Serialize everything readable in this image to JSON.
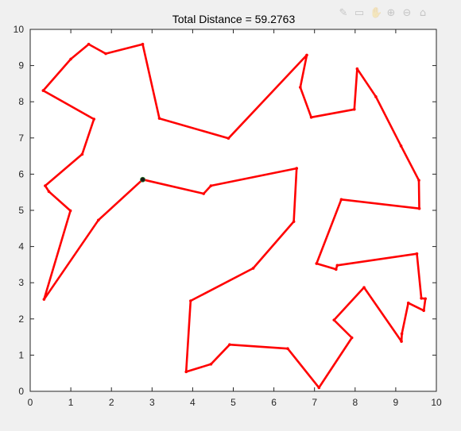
{
  "toolbar": {
    "icons": [
      "brush-icon",
      "data-tip-icon",
      "pan-icon",
      "zoom-in-icon",
      "zoom-out-icon",
      "home-icon"
    ]
  },
  "chart_data": {
    "type": "line",
    "title": "Total Distance = 59.2763",
    "xlabel": "",
    "ylabel": "",
    "xlim": [
      0,
      10
    ],
    "ylim": [
      0,
      10
    ],
    "xticks": [
      "0",
      "1",
      "2",
      "3",
      "4",
      "5",
      "6",
      "7",
      "8",
      "9",
      "10"
    ],
    "yticks": [
      "0",
      "1",
      "2",
      "3",
      "4",
      "5",
      "6",
      "7",
      "8",
      "9",
      "10"
    ],
    "grid": false,
    "line_color": "#ff0000",
    "start_marker_color": "#1a1a1a",
    "start_point": [
      2.77,
      5.85
    ],
    "route": [
      [
        2.77,
        5.85
      ],
      [
        4.27,
        5.46
      ],
      [
        4.45,
        5.68
      ],
      [
        6.56,
        6.16
      ],
      [
        6.49,
        4.69
      ],
      [
        5.49,
        3.4
      ],
      [
        3.95,
        2.5
      ],
      [
        3.84,
        0.54
      ],
      [
        4.45,
        0.75
      ],
      [
        4.91,
        1.29
      ],
      [
        6.34,
        1.18
      ],
      [
        7.11,
        0.1
      ],
      [
        7.92,
        1.48
      ],
      [
        7.48,
        1.97
      ],
      [
        8.22,
        2.87
      ],
      [
        9.14,
        1.38
      ],
      [
        9.15,
        1.59
      ],
      [
        9.31,
        2.44
      ],
      [
        9.69,
        2.23
      ],
      [
        9.73,
        2.56
      ],
      [
        9.63,
        2.57
      ],
      [
        9.52,
        3.8
      ],
      [
        7.56,
        3.48
      ],
      [
        7.53,
        3.37
      ],
      [
        7.05,
        3.53
      ],
      [
        7.66,
        5.3
      ],
      [
        9.58,
        5.05
      ],
      [
        9.57,
        5.83
      ],
      [
        9.13,
        6.78
      ],
      [
        8.51,
        8.14
      ],
      [
        8.05,
        8.91
      ],
      [
        7.98,
        7.79
      ],
      [
        6.92,
        7.57
      ],
      [
        6.65,
        8.4
      ],
      [
        6.81,
        9.29
      ],
      [
        4.88,
        6.99
      ],
      [
        3.18,
        7.54
      ],
      [
        2.77,
        9.59
      ],
      [
        1.86,
        9.33
      ],
      [
        1.44,
        9.59
      ],
      [
        1.0,
        9.18
      ],
      [
        0.32,
        8.31
      ],
      [
        1.57,
        7.52
      ],
      [
        1.28,
        6.55
      ],
      [
        0.37,
        5.68
      ],
      [
        0.46,
        5.52
      ],
      [
        0.99,
        4.99
      ],
      [
        0.34,
        2.54
      ],
      [
        1.68,
        4.73
      ],
      [
        2.77,
        5.85
      ]
    ]
  }
}
